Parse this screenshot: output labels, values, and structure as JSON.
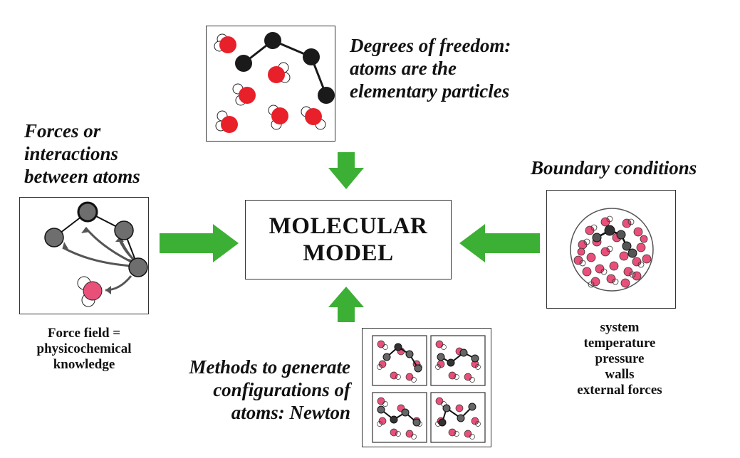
{
  "center": {
    "line1": "MOLECULAR",
    "line2": "MODEL"
  },
  "top": {
    "caption_lines": [
      "Degrees of freedom:",
      "atoms are the",
      "elementary particles"
    ]
  },
  "left": {
    "caption_lines": [
      "Forces or",
      "interactions",
      "between atoms"
    ],
    "sub_lines": [
      "Force field =",
      "physicochemical",
      "knowledge"
    ]
  },
  "right": {
    "caption": "Boundary conditions",
    "sub_lines": [
      "system",
      "temperature",
      "pressure",
      "walls",
      "external forces"
    ]
  },
  "bottom": {
    "caption_lines": [
      "Methods to generate",
      "configurations of",
      "atoms: Newton"
    ]
  },
  "colors": {
    "arrow": "#3cb034",
    "oxygen": "#e8202a",
    "oxygen_pink": "#e8507a",
    "carbon": "#1a1a1a",
    "grey_atom": "#6e6e6e"
  },
  "icons": [
    "arrow-down-icon",
    "arrow-right-icon",
    "arrow-left-icon",
    "arrow-up-icon"
  ]
}
